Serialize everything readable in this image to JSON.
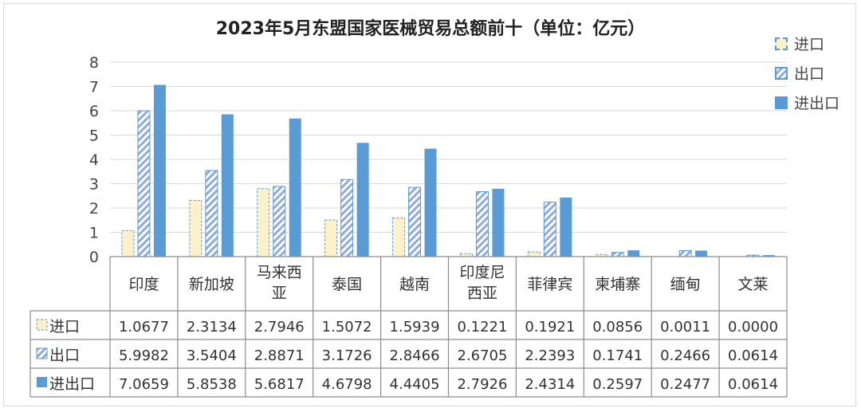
{
  "chart_data": {
    "type": "bar",
    "title": "2023年5月东盟国家医械贸易总额前十（单位：亿元）",
    "categories": [
      "印度",
      "新加坡",
      "马来西亚",
      "泰国",
      "越南",
      "印度尼西亚",
      "菲律宾",
      "柬埔寨",
      "缅甸",
      "文莱"
    ],
    "category_display": [
      "印度",
      "新加坡",
      "马来西\n亚",
      "泰国",
      "越南",
      "印度尼\n西亚",
      "菲律宾",
      "柬埔寨",
      "缅甸",
      "文莱"
    ],
    "series": [
      {
        "name": "进口",
        "values": [
          1.0677,
          2.3134,
          2.7946,
          1.5072,
          1.5939,
          0.1221,
          0.1921,
          0.0856,
          0.0011,
          0.0
        ],
        "labels": [
          "1.0677",
          "2.3134",
          "2.7946",
          "1.5072",
          "1.5939",
          "0.1221",
          "0.1921",
          "0.0856",
          "0.0011",
          "0.0000"
        ],
        "color": "#fdf1cc",
        "style": "dashed-outline"
      },
      {
        "name": "出口",
        "values": [
          5.9982,
          3.5404,
          2.8871,
          3.1726,
          2.8466,
          2.6705,
          2.2393,
          0.1741,
          0.2466,
          0.0614
        ],
        "labels": [
          "5.9982",
          "3.5404",
          "2.8871",
          "3.1726",
          "2.8466",
          "2.6705",
          "2.2393",
          "0.1741",
          "0.2466",
          "0.0614"
        ],
        "color": "#8faadc",
        "style": "hatched"
      },
      {
        "name": "进出口",
        "values": [
          7.0659,
          5.8538,
          5.6817,
          4.6798,
          4.4405,
          2.7926,
          2.4314,
          0.2597,
          0.2477,
          0.0614
        ],
        "labels": [
          "7.0659",
          "5.8538",
          "5.6817",
          "4.6798",
          "4.4405",
          "2.7926",
          "2.4314",
          "0.2597",
          "0.2477",
          "0.0614"
        ],
        "color": "#5b9bd5",
        "style": "solid"
      }
    ],
    "ylim": [
      0,
      8
    ],
    "yticks": [
      "0",
      "1",
      "2",
      "3",
      "4",
      "5",
      "6",
      "7",
      "8"
    ],
    "grid": true,
    "legend": "right",
    "data_table": true
  }
}
